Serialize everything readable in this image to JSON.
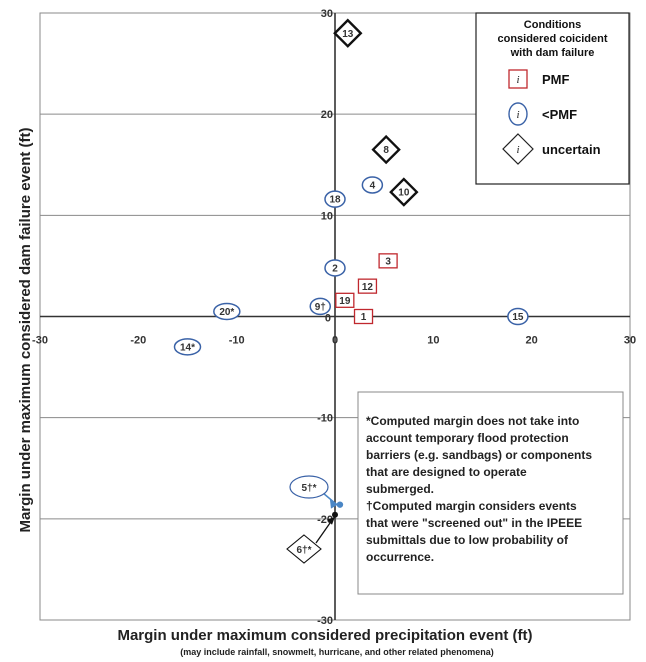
{
  "chart_data": {
    "type": "scatter",
    "xlabel": "Margin under maximum considered precipitation event (ft)",
    "xlabel_sub": "(may include rainfall, snowmelt, hurricane, and other related phenomena)",
    "ylabel": "Margin under maximum considered dam failure event (ft)",
    "xlim": [
      -30,
      30
    ],
    "ylim": [
      -30,
      30
    ],
    "xticks": [
      -30,
      -20,
      -10,
      0,
      10,
      20,
      30
    ],
    "yticks": [
      -30,
      -20,
      -10,
      0,
      10,
      20,
      30
    ],
    "grid": true,
    "legend": {
      "placement": "top-right",
      "title": [
        "Conditions",
        "considered coicident",
        "with dam failure"
      ],
      "symbol_label": "i",
      "entries": [
        {
          "name": "PMF",
          "marker": "square",
          "color": "#c0282e"
        },
        {
          "name": "<PMF",
          "marker": "ellipse",
          "color": "#3a62a7"
        },
        {
          "name": "uncertain",
          "marker": "diamond",
          "color": "#222222"
        }
      ]
    },
    "points": [
      {
        "label": "13",
        "x": 1.3,
        "y": 28,
        "cond": "uncertain",
        "bold": true
      },
      {
        "label": "8",
        "x": 5.2,
        "y": 16.5,
        "cond": "uncertain",
        "bold": true
      },
      {
        "label": "10",
        "x": 7,
        "y": 12.3,
        "cond": "uncertain",
        "bold": true
      },
      {
        "label": "4",
        "x": 3.8,
        "y": 13,
        "cond": "<PMF"
      },
      {
        "label": "18",
        "x": 0,
        "y": 11.6,
        "cond": "<PMF",
        "bold": true
      },
      {
        "label": "2",
        "x": 0,
        "y": 4.8,
        "cond": "<PMF"
      },
      {
        "label": "3",
        "x": 5.4,
        "y": 5.5,
        "cond": "PMF"
      },
      {
        "label": "12",
        "x": 3.3,
        "y": 3,
        "cond": "PMF"
      },
      {
        "label": "19",
        "x": 1,
        "y": 1.6,
        "cond": "PMF"
      },
      {
        "label": "1",
        "x": 2.9,
        "y": 0,
        "cond": "PMF"
      },
      {
        "label": "9†",
        "x": -1.5,
        "y": 1,
        "cond": "<PMF"
      },
      {
        "label": "20*",
        "x": -11,
        "y": 0.5,
        "cond": "<PMF",
        "bold": true
      },
      {
        "label": "14*",
        "x": -15,
        "y": -3,
        "cond": "<PMF",
        "bold": true
      },
      {
        "label": "15",
        "x": 18.6,
        "y": 0,
        "cond": "<PMF"
      }
    ],
    "callouts": [
      {
        "label": "5†*",
        "x": 0.3,
        "y": -18.6,
        "cond": "<PMF",
        "point_color": "#4a86c5"
      },
      {
        "label": "6†*",
        "x": 0,
        "y": -19.6,
        "cond": "uncertain",
        "point_color": "#111111"
      }
    ],
    "note": {
      "lines": [
        "*Computed margin does not take into",
        "account temporary flood protection",
        "barriers (e.g. sandbags) or components",
        "that are designed to operate",
        "submerged.",
        "†Computed margin considers events",
        "that were \"screened out\" in the IPEEE",
        "submittals due to low probability of",
        "occurrence."
      ]
    }
  }
}
